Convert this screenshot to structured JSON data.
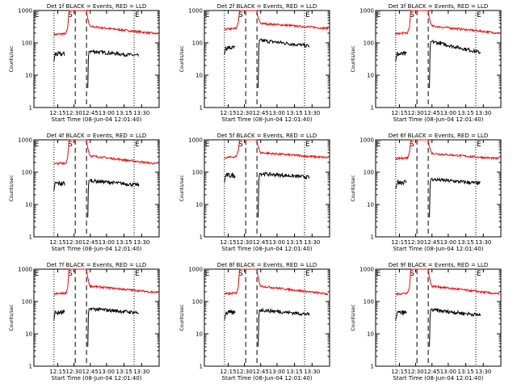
{
  "chart_data": [
    {
      "type": "line",
      "title": "Det 1f BLACK = Events, RED = LLD",
      "xlabel": "Start Time (08-Jun-04 12:01:40)",
      "ylabel": "Counts/sec",
      "ylim": [
        1,
        1000
      ],
      "yscale": "log",
      "yticks": [
        "1",
        "10",
        "100",
        "1000"
      ],
      "xticks": [
        "12:15",
        "12:30",
        "12:45",
        "13:00",
        "13:15",
        "13:30"
      ],
      "markers": {
        "E": "E",
        "S": "S"
      },
      "series": [
        {
          "name": "RED = LLD",
          "color": "#ff0000"
        },
        {
          "name": "BLACK = Events",
          "color": "#000000"
        }
      ],
      "red": {
        "pre": 180,
        "peak": 1000,
        "post": 320,
        "end": 190
      },
      "black": {
        "pre": 45,
        "post": 55,
        "end": 40
      }
    },
    {
      "type": "line",
      "title": "Det 2f BLACK = Events, RED = LLD",
      "xlabel": "Start Time (08-Jun-04 12:01:40)",
      "ylabel": "Counts/sec",
      "ylim": [
        1,
        1000
      ],
      "yscale": "log",
      "yticks": [
        "1",
        "10",
        "100",
        "1000"
      ],
      "xticks": [
        "12:15",
        "12:30",
        "12:45",
        "13:00",
        "13:15",
        "13:30"
      ],
      "markers": {
        "E": "E",
        "S": "S"
      },
      "series": [
        {
          "name": "RED = LLD",
          "color": "#ff0000"
        },
        {
          "name": "BLACK = Events",
          "color": "#000000"
        }
      ],
      "red": {
        "pre": 260,
        "peak": 1000,
        "post": 400,
        "end": 280
      },
      "black": {
        "pre": 70,
        "post": 120,
        "end": 80
      }
    },
    {
      "type": "line",
      "title": "Det 3f BLACK = Events, RED = LLD",
      "xlabel": "Start Time (08-Jun-04 12:01:40)",
      "ylabel": "Counts/sec",
      "ylim": [
        1,
        1000
      ],
      "yscale": "log",
      "yticks": [
        "1",
        "10",
        "100",
        "1000"
      ],
      "xticks": [
        "12:15",
        "12:30",
        "12:45",
        "13:00",
        "13:15",
        "13:30"
      ],
      "markers": {
        "E": "E",
        "S": "S"
      },
      "series": [
        {
          "name": "RED = LLD",
          "color": "#ff0000"
        },
        {
          "name": "BLACK = Events",
          "color": "#000000"
        }
      ],
      "red": {
        "pre": 190,
        "peak": 1000,
        "post": 330,
        "end": 200
      },
      "black": {
        "pre": 45,
        "post": 110,
        "end": 50
      }
    },
    {
      "type": "line",
      "title": "Det 4f BLACK = Events, RED = LLD",
      "xlabel": "Start Time (08-Jun-04 12:01:40)",
      "ylabel": "Counts/sec",
      "ylim": [
        1,
        1000
      ],
      "yscale": "log",
      "yticks": [
        "1",
        "10",
        "100",
        "1000"
      ],
      "xticks": [
        "12:15",
        "12:30",
        "12:45",
        "13:00",
        "13:15",
        "13:30"
      ],
      "markers": {
        "E": "E",
        "S": "S"
      },
      "series": [
        {
          "name": "RED = LLD",
          "color": "#ff0000"
        },
        {
          "name": "BLACK = Events",
          "color": "#000000"
        }
      ],
      "red": {
        "pre": 180,
        "peak": 1000,
        "post": 320,
        "end": 180
      },
      "black": {
        "pre": 45,
        "post": 55,
        "end": 40
      }
    },
    {
      "type": "line",
      "title": "Det 5f BLACK = Events, RED = LLD",
      "xlabel": "Start Time (08-Jun-04 12:01:40)",
      "ylabel": "Counts/sec",
      "ylim": [
        1,
        1000
      ],
      "yscale": "log",
      "yticks": [
        "1",
        "10",
        "100",
        "1000"
      ],
      "xticks": [
        "12:15",
        "12:30",
        "12:45",
        "13:00",
        "13:15",
        "13:30"
      ],
      "markers": {
        "E": "E",
        "S": "S"
      },
      "series": [
        {
          "name": "RED = LLD",
          "color": "#ff0000"
        },
        {
          "name": "BLACK = Events",
          "color": "#000000"
        }
      ],
      "red": {
        "pre": 280,
        "peak": 1000,
        "post": 400,
        "end": 280
      },
      "black": {
        "pre": 80,
        "post": 90,
        "end": 70
      }
    },
    {
      "type": "line",
      "title": "Det 6f BLACK = Events, RED = LLD",
      "xlabel": "Start Time (08-Jun-04 12:01:40)",
      "ylabel": "Counts/sec",
      "ylim": [
        1,
        1000
      ],
      "yscale": "log",
      "yticks": [
        "1",
        "10",
        "100",
        "1000"
      ],
      "xticks": [
        "12:15",
        "12:30",
        "12:45",
        "13:00",
        "13:15",
        "13:30"
      ],
      "markers": {
        "E": "E",
        "S": "S"
      },
      "series": [
        {
          "name": "RED = LLD",
          "color": "#ff0000"
        },
        {
          "name": "BLACK = Events",
          "color": "#000000"
        }
      ],
      "red": {
        "pre": 260,
        "peak": 1000,
        "post": 380,
        "end": 260
      },
      "black": {
        "pre": 50,
        "post": 60,
        "end": 45
      }
    },
    {
      "type": "line",
      "title": "Det 7f BLACK = Events, RED = LLD",
      "xlabel": "Start Time (08-Jun-04 12:01:40)",
      "ylabel": "Counts/sec",
      "ylim": [
        1,
        1000
      ],
      "yscale": "log",
      "yticks": [
        "1",
        "10",
        "100",
        "1000"
      ],
      "xticks": [
        "12:15",
        "12:30",
        "12:45",
        "13:00",
        "13:15",
        "13:30"
      ],
      "markers": {
        "E": "E",
        "S": "S"
      },
      "series": [
        {
          "name": "RED = LLD",
          "color": "#ff0000"
        },
        {
          "name": "BLACK = Events",
          "color": "#000000"
        }
      ],
      "red": {
        "pre": 170,
        "peak": 1000,
        "post": 300,
        "end": 190
      },
      "black": {
        "pre": 45,
        "post": 60,
        "end": 45
      }
    },
    {
      "type": "line",
      "title": "Det 8f BLACK = Events, RED = LLD",
      "xlabel": "Start Time (08-Jun-04 12:01:40)",
      "ylabel": "Counts/sec",
      "ylim": [
        1,
        1000
      ],
      "yscale": "log",
      "yticks": [
        "1",
        "10",
        "100",
        "1000"
      ],
      "xticks": [
        "12:15",
        "12:30",
        "12:45",
        "13:00",
        "13:15",
        "13:30"
      ],
      "markers": {
        "E": "E",
        "S": "S"
      },
      "series": [
        {
          "name": "RED = LLD",
          "color": "#ff0000"
        },
        {
          "name": "BLACK = Events",
          "color": "#000000"
        }
      ],
      "red": {
        "pre": 170,
        "peak": 1000,
        "post": 300,
        "end": 170
      },
      "black": {
        "pre": 45,
        "post": 55,
        "end": 40
      }
    },
    {
      "type": "line",
      "title": "Det 9f BLACK = Events, RED = LLD",
      "xlabel": "Start Time (08-Jun-04 12:01:40)",
      "ylabel": "Counts/sec",
      "ylim": [
        1,
        1000
      ],
      "yscale": "log",
      "yticks": [
        "1",
        "10",
        "100",
        "1000"
      ],
      "xticks": [
        "12:15",
        "12:30",
        "12:45",
        "13:00",
        "13:15",
        "13:30"
      ],
      "markers": {
        "E": "E",
        "S": "S"
      },
      "series": [
        {
          "name": "RED = LLD",
          "color": "#ff0000"
        },
        {
          "name": "BLACK = Events",
          "color": "#000000"
        }
      ],
      "red": {
        "pre": 170,
        "peak": 1000,
        "post": 300,
        "end": 170
      },
      "black": {
        "pre": 45,
        "post": 55,
        "end": 38
      }
    }
  ]
}
